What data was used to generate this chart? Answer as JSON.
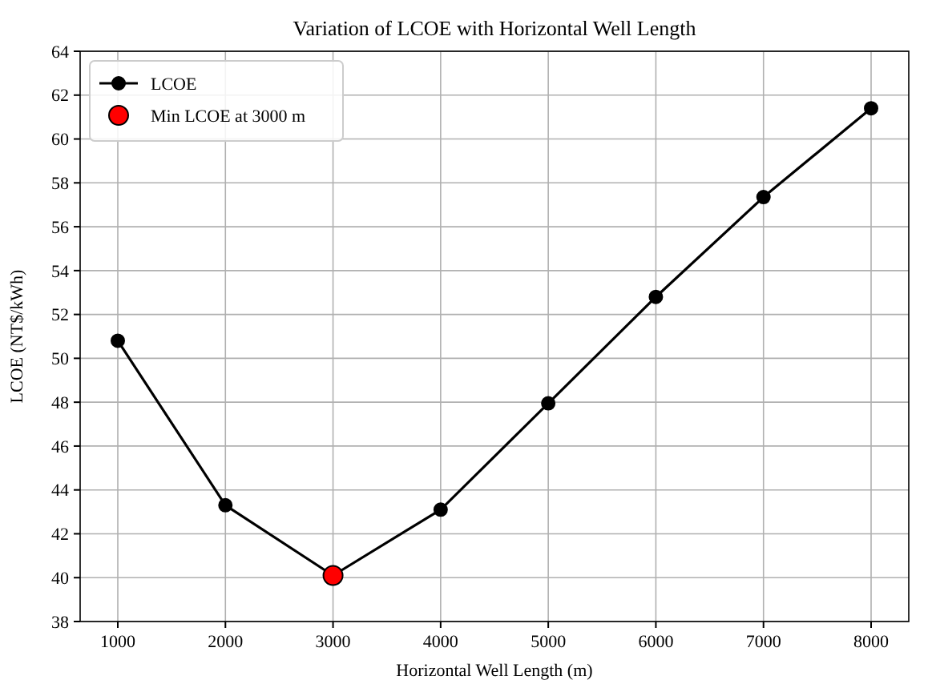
{
  "chart_data": {
    "type": "line",
    "title": "Variation of LCOE with Horizontal Well Length",
    "xlabel": "Horizontal Well Length (m)",
    "ylabel": "LCOE (NT$/kWh)",
    "x": [
      1000,
      2000,
      3000,
      4000,
      5000,
      6000,
      7000,
      8000
    ],
    "series": [
      {
        "name": "LCOE",
        "color": "#000000",
        "values": [
          50.8,
          43.3,
          40.1,
          43.1,
          47.95,
          52.8,
          57.35,
          61.4
        ]
      },
      {
        "name": "Min LCOE at 3000 m",
        "type": "scatter",
        "color": "#ff0000",
        "x": [
          3000
        ],
        "values": [
          40.1
        ]
      }
    ],
    "xlim": [
      650,
      8350
    ],
    "xticks": [
      1000,
      2000,
      3000,
      4000,
      5000,
      6000,
      7000,
      8000
    ],
    "ylim": [
      38,
      64
    ],
    "yticks": [
      38,
      40,
      42,
      44,
      46,
      48,
      50,
      52,
      54,
      56,
      58,
      60,
      62,
      64
    ],
    "grid": true,
    "legend": "top left",
    "marker": "circle",
    "line_style": "solid"
  }
}
